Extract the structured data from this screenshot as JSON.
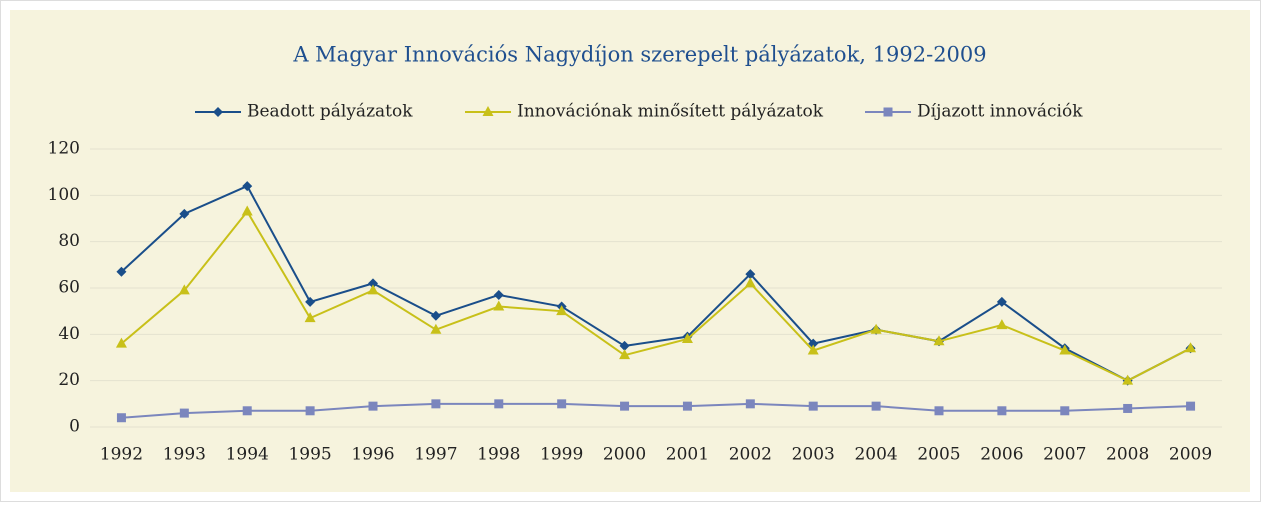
{
  "chart_data": {
    "type": "line",
    "title": "A Magyar Innovációs Nagydíjon szerepelt pályázatok, 1992-2009",
    "categories": [
      "1992",
      "1993",
      "1994",
      "1995",
      "1996",
      "1997",
      "1998",
      "1999",
      "2000",
      "2001",
      "2002",
      "2003",
      "2004",
      "2005",
      "2006",
      "2007",
      "2008",
      "2009"
    ],
    "series": [
      {
        "name": "Beadott pályázatok",
        "color": "#1a4e8a",
        "marker": "diamond",
        "values": [
          67,
          92,
          104,
          54,
          62,
          48,
          57,
          52,
          35,
          39,
          66,
          36,
          42,
          37,
          54,
          34,
          20,
          34
        ]
      },
      {
        "name": "Innovációnak minősített pályázatok",
        "color": "#c8c019",
        "marker": "triangle",
        "values": [
          36,
          59,
          93,
          47,
          59,
          42,
          52,
          50,
          31,
          38,
          62,
          33,
          42,
          37,
          44,
          33,
          20,
          34
        ]
      },
      {
        "name": "Díjazott innovációk",
        "color": "#7b86bd",
        "marker": "square",
        "values": [
          4,
          6,
          7,
          7,
          9,
          10,
          10,
          10,
          9,
          9,
          10,
          9,
          9,
          7,
          7,
          7,
          8,
          9
        ]
      }
    ],
    "ylim": [
      0,
      120
    ],
    "yticks": [
      0,
      20,
      40,
      60,
      80,
      100,
      120
    ],
    "grid": true,
    "legend": "top"
  }
}
